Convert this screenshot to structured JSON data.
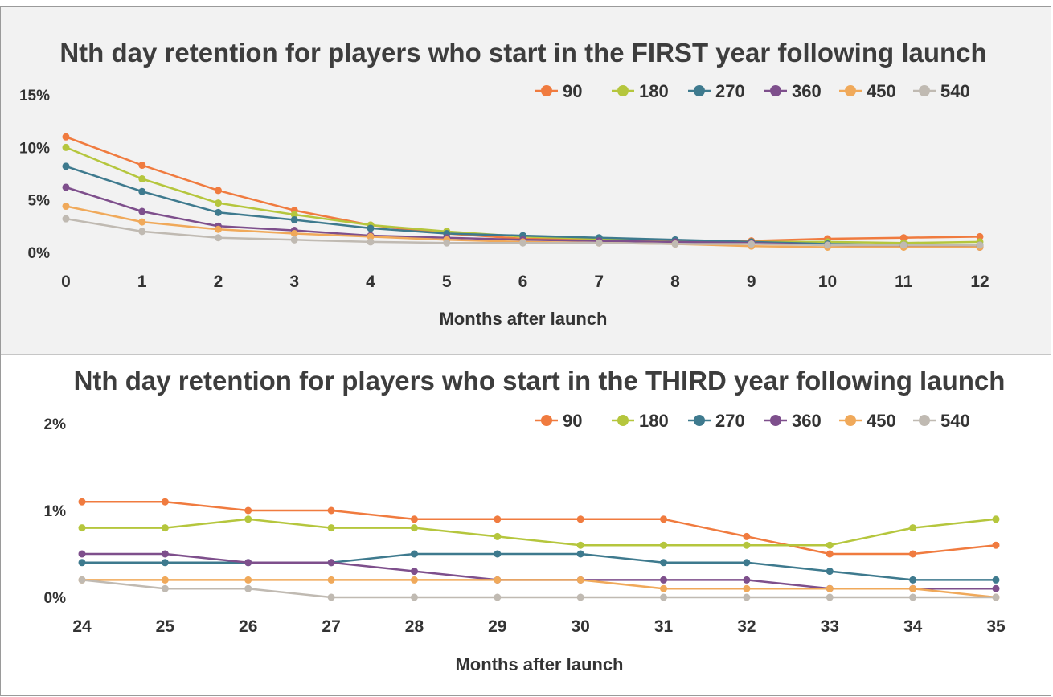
{
  "chart_data": [
    {
      "type": "line",
      "title": "Nth day retention for players who start in the FIRST year following launch",
      "xlabel": "Months after launch",
      "ylabel": "",
      "x": [
        0,
        1,
        2,
        3,
        4,
        5,
        6,
        7,
        8,
        9,
        10,
        11,
        12
      ],
      "y_ticks": [
        "15%",
        "10%",
        "5%",
        "0%"
      ],
      "ylim": [
        0,
        15
      ],
      "legend_position": "top-right",
      "series": [
        {
          "name": "90",
          "color": "#f07b3f",
          "values": [
            11.0,
            8.3,
            5.9,
            4.0,
            2.6,
            1.8,
            1.3,
            1.2,
            1.1,
            1.1,
            1.3,
            1.4,
            1.5
          ]
        },
        {
          "name": "180",
          "color": "#b5c63d",
          "values": [
            10.0,
            7.0,
            4.7,
            3.6,
            2.6,
            2.0,
            1.5,
            1.3,
            1.1,
            1.0,
            1.0,
            0.9,
            1.0
          ]
        },
        {
          "name": "270",
          "color": "#3e7a8e",
          "values": [
            8.2,
            5.8,
            3.8,
            3.1,
            2.3,
            1.8,
            1.6,
            1.4,
            1.2,
            1.0,
            0.8,
            0.7,
            0.7
          ]
        },
        {
          "name": "360",
          "color": "#7e4f8c",
          "values": [
            6.2,
            3.9,
            2.5,
            2.1,
            1.6,
            1.4,
            1.2,
            1.1,
            1.0,
            0.9,
            0.7,
            0.6,
            0.5
          ]
        },
        {
          "name": "450",
          "color": "#f0a95a",
          "values": [
            4.4,
            2.9,
            2.2,
            1.8,
            1.5,
            1.2,
            1.0,
            0.9,
            0.8,
            0.6,
            0.5,
            0.5,
            0.5
          ]
        },
        {
          "name": "540",
          "color": "#c0bab2",
          "values": [
            3.2,
            2.0,
            1.4,
            1.2,
            1.0,
            0.9,
            0.9,
            0.9,
            0.8,
            0.8,
            0.7,
            0.7,
            0.7
          ]
        }
      ]
    },
    {
      "type": "line",
      "title": "Nth day retention for players who start in the THIRD year following launch",
      "xlabel": "Months after launch",
      "ylabel": "",
      "x": [
        24,
        25,
        26,
        27,
        28,
        29,
        30,
        31,
        32,
        33,
        34,
        35
      ],
      "y_ticks": [
        "2%",
        "1%",
        "0%"
      ],
      "ylim": [
        0,
        2
      ],
      "legend_position": "top-right",
      "series": [
        {
          "name": "90",
          "color": "#f07b3f",
          "values": [
            1.1,
            1.1,
            1.0,
            1.0,
            0.9,
            0.9,
            0.9,
            0.9,
            0.7,
            0.5,
            0.5,
            0.6
          ]
        },
        {
          "name": "180",
          "color": "#b5c63d",
          "values": [
            0.8,
            0.8,
            0.9,
            0.8,
            0.8,
            0.7,
            0.6,
            0.6,
            0.6,
            0.6,
            0.8,
            0.9
          ]
        },
        {
          "name": "270",
          "color": "#3e7a8e",
          "values": [
            0.4,
            0.4,
            0.4,
            0.4,
            0.5,
            0.5,
            0.5,
            0.4,
            0.4,
            0.3,
            0.2,
            0.2
          ]
        },
        {
          "name": "360",
          "color": "#7e4f8c",
          "values": [
            0.5,
            0.5,
            0.4,
            0.4,
            0.3,
            0.2,
            0.2,
            0.2,
            0.2,
            0.1,
            0.1,
            0.1
          ]
        },
        {
          "name": "450",
          "color": "#f0a95a",
          "values": [
            0.2,
            0.2,
            0.2,
            0.2,
            0.2,
            0.2,
            0.2,
            0.1,
            0.1,
            0.1,
            0.1,
            0.0
          ]
        },
        {
          "name": "540",
          "color": "#c0bab2",
          "values": [
            0.2,
            0.1,
            0.1,
            0.0,
            0.0,
            0.0,
            0.0,
            0.0,
            0.0,
            0.0,
            0.0,
            0.0
          ]
        }
      ]
    }
  ]
}
